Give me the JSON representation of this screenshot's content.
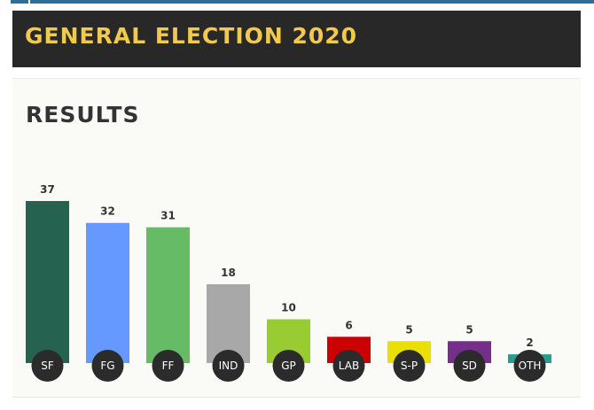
{
  "header": {
    "title": "GENERAL ELECTION 2020"
  },
  "panel": {
    "title": "RESULTS"
  },
  "chart_data": {
    "type": "bar",
    "title": "RESULTS",
    "categories": [
      "SF",
      "FG",
      "FF",
      "IND",
      "GP",
      "LAB",
      "S-P",
      "SD",
      "OTH"
    ],
    "values": [
      37,
      32,
      31,
      18,
      10,
      6,
      5,
      5,
      2
    ],
    "colors": [
      "#25624f",
      "#6699ff",
      "#66bb66",
      "#a8a8a8",
      "#99cc33",
      "#cc0000",
      "#e8e000",
      "#752f8b",
      "#2a9d8f"
    ],
    "ylim": [
      0,
      37
    ],
    "grid": false,
    "legend": "none"
  }
}
